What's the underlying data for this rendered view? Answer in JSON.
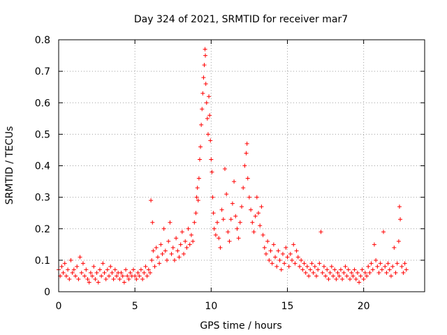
{
  "chart_data": {
    "type": "scatter",
    "title": "Day 324 of 2021, SRMTID for receiver mar7",
    "xlabel": "GPS time / hours",
    "ylabel": "SRMTID / TECUs",
    "xlim": [
      0,
      24
    ],
    "ylim": [
      0,
      0.8
    ],
    "xticks": [
      0,
      5,
      10,
      15,
      20
    ],
    "yticks": [
      0,
      0.1,
      0.2,
      0.3,
      0.4,
      0.5,
      0.6,
      0.7,
      0.8
    ],
    "grid": true,
    "marker": "+",
    "color": "#ff0000",
    "series": [
      {
        "name": "mar7",
        "points": [
          [
            0.0,
            0.07
          ],
          [
            0.1,
            0.05
          ],
          [
            0.2,
            0.08
          ],
          [
            0.3,
            0.06
          ],
          [
            0.4,
            0.09
          ],
          [
            0.5,
            0.05
          ],
          [
            0.6,
            0.07
          ],
          [
            0.7,
            0.04
          ],
          [
            0.8,
            0.1
          ],
          [
            0.9,
            0.06
          ],
          [
            1.0,
            0.07
          ],
          [
            1.1,
            0.05
          ],
          [
            1.2,
            0.08
          ],
          [
            1.3,
            0.04
          ],
          [
            1.4,
            0.11
          ],
          [
            1.5,
            0.06
          ],
          [
            1.6,
            0.09
          ],
          [
            1.7,
            0.05
          ],
          [
            1.8,
            0.07
          ],
          [
            1.9,
            0.04
          ],
          [
            2.0,
            0.03
          ],
          [
            2.1,
            0.06
          ],
          [
            2.2,
            0.05
          ],
          [
            2.3,
            0.08
          ],
          [
            2.4,
            0.04
          ],
          [
            2.5,
            0.06
          ],
          [
            2.6,
            0.03
          ],
          [
            2.7,
            0.07
          ],
          [
            2.8,
            0.05
          ],
          [
            2.9,
            0.09
          ],
          [
            3.0,
            0.06
          ],
          [
            3.1,
            0.04
          ],
          [
            3.2,
            0.07
          ],
          [
            3.3,
            0.05
          ],
          [
            3.4,
            0.08
          ],
          [
            3.5,
            0.06
          ],
          [
            3.6,
            0.04
          ],
          [
            3.7,
            0.07
          ],
          [
            3.8,
            0.05
          ],
          [
            3.9,
            0.06
          ],
          [
            4.0,
            0.04
          ],
          [
            4.1,
            0.06
          ],
          [
            4.2,
            0.05
          ],
          [
            4.3,
            0.03
          ],
          [
            4.4,
            0.07
          ],
          [
            4.5,
            0.05
          ],
          [
            4.6,
            0.04
          ],
          [
            4.7,
            0.06
          ],
          [
            4.8,
            0.05
          ],
          [
            4.9,
            0.07
          ],
          [
            5.0,
            0.05
          ],
          [
            5.1,
            0.04
          ],
          [
            5.2,
            0.06
          ],
          [
            5.3,
            0.05
          ],
          [
            5.4,
            0.07
          ],
          [
            5.5,
            0.04
          ],
          [
            5.6,
            0.06
          ],
          [
            5.7,
            0.08
          ],
          [
            5.8,
            0.05
          ],
          [
            5.9,
            0.07
          ],
          [
            6.0,
            0.06
          ],
          [
            6.05,
            0.29
          ],
          [
            6.1,
            0.1
          ],
          [
            6.15,
            0.22
          ],
          [
            6.2,
            0.13
          ],
          [
            6.3,
            0.08
          ],
          [
            6.4,
            0.14
          ],
          [
            6.5,
            0.11
          ],
          [
            6.6,
            0.09
          ],
          [
            6.7,
            0.15
          ],
          [
            6.8,
            0.12
          ],
          [
            6.9,
            0.2
          ],
          [
            7.0,
            0.13
          ],
          [
            7.1,
            0.1
          ],
          [
            7.2,
            0.16
          ],
          [
            7.3,
            0.22
          ],
          [
            7.4,
            0.12
          ],
          [
            7.5,
            0.14
          ],
          [
            7.6,
            0.1
          ],
          [
            7.7,
            0.17
          ],
          [
            7.8,
            0.13
          ],
          [
            7.9,
            0.11
          ],
          [
            8.0,
            0.15
          ],
          [
            8.1,
            0.19
          ],
          [
            8.2,
            0.12
          ],
          [
            8.3,
            0.16
          ],
          [
            8.4,
            0.14
          ],
          [
            8.5,
            0.2
          ],
          [
            8.6,
            0.15
          ],
          [
            8.7,
            0.18
          ],
          [
            8.8,
            0.16
          ],
          [
            8.9,
            0.22
          ],
          [
            9.0,
            0.25
          ],
          [
            9.05,
            0.3
          ],
          [
            9.1,
            0.33
          ],
          [
            9.15,
            0.29
          ],
          [
            9.2,
            0.36
          ],
          [
            9.25,
            0.42
          ],
          [
            9.3,
            0.46
          ],
          [
            9.35,
            0.53
          ],
          [
            9.4,
            0.58
          ],
          [
            9.45,
            0.63
          ],
          [
            9.5,
            0.68
          ],
          [
            9.55,
            0.72
          ],
          [
            9.6,
            0.77
          ],
          [
            9.62,
            0.75
          ],
          [
            9.65,
            0.66
          ],
          [
            9.7,
            0.6
          ],
          [
            9.75,
            0.55
          ],
          [
            9.8,
            0.5
          ],
          [
            9.85,
            0.62
          ],
          [
            9.9,
            0.56
          ],
          [
            9.95,
            0.48
          ],
          [
            10.0,
            0.42
          ],
          [
            10.05,
            0.38
          ],
          [
            10.1,
            0.3
          ],
          [
            10.15,
            0.25
          ],
          [
            10.2,
            0.2
          ],
          [
            10.3,
            0.18
          ],
          [
            10.4,
            0.22
          ],
          [
            10.5,
            0.17
          ],
          [
            10.6,
            0.14
          ],
          [
            10.7,
            0.26
          ],
          [
            10.8,
            0.23
          ],
          [
            10.9,
            0.39
          ],
          [
            11.0,
            0.31
          ],
          [
            11.1,
            0.19
          ],
          [
            11.2,
            0.16
          ],
          [
            11.3,
            0.23
          ],
          [
            11.4,
            0.28
          ],
          [
            11.5,
            0.35
          ],
          [
            11.6,
            0.24
          ],
          [
            11.7,
            0.2
          ],
          [
            11.8,
            0.17
          ],
          [
            11.9,
            0.22
          ],
          [
            12.0,
            0.27
          ],
          [
            12.1,
            0.33
          ],
          [
            12.2,
            0.4
          ],
          [
            12.3,
            0.44
          ],
          [
            12.35,
            0.47
          ],
          [
            12.4,
            0.36
          ],
          [
            12.5,
            0.3
          ],
          [
            12.6,
            0.26
          ],
          [
            12.7,
            0.22
          ],
          [
            12.8,
            0.19
          ],
          [
            12.9,
            0.24
          ],
          [
            13.0,
            0.3
          ],
          [
            13.1,
            0.25
          ],
          [
            13.2,
            0.21
          ],
          [
            13.3,
            0.27
          ],
          [
            13.4,
            0.18
          ],
          [
            13.5,
            0.14
          ],
          [
            13.6,
            0.12
          ],
          [
            13.7,
            0.16
          ],
          [
            13.8,
            0.1
          ],
          [
            13.9,
            0.13
          ],
          [
            14.0,
            0.09
          ],
          [
            14.1,
            0.15
          ],
          [
            14.2,
            0.11
          ],
          [
            14.3,
            0.08
          ],
          [
            14.4,
            0.13
          ],
          [
            14.5,
            0.1
          ],
          [
            14.6,
            0.07
          ],
          [
            14.7,
            0.12
          ],
          [
            14.8,
            0.09
          ],
          [
            14.9,
            0.14
          ],
          [
            15.0,
            0.11
          ],
          [
            15.1,
            0.08
          ],
          [
            15.2,
            0.12
          ],
          [
            15.3,
            0.1
          ],
          [
            15.4,
            0.15
          ],
          [
            15.5,
            0.09
          ],
          [
            15.6,
            0.13
          ],
          [
            15.7,
            0.11
          ],
          [
            15.8,
            0.08
          ],
          [
            15.9,
            0.1
          ],
          [
            16.0,
            0.07
          ],
          [
            16.1,
            0.09
          ],
          [
            16.2,
            0.06
          ],
          [
            16.3,
            0.08
          ],
          [
            16.4,
            0.05
          ],
          [
            16.5,
            0.07
          ],
          [
            16.6,
            0.09
          ],
          [
            16.7,
            0.06
          ],
          [
            16.8,
            0.08
          ],
          [
            16.9,
            0.05
          ],
          [
            17.0,
            0.07
          ],
          [
            17.1,
            0.09
          ],
          [
            17.2,
            0.19
          ],
          [
            17.3,
            0.06
          ],
          [
            17.4,
            0.08
          ],
          [
            17.5,
            0.05
          ],
          [
            17.6,
            0.07
          ],
          [
            17.7,
            0.04
          ],
          [
            17.8,
            0.06
          ],
          [
            17.9,
            0.08
          ],
          [
            18.0,
            0.05
          ],
          [
            18.1,
            0.07
          ],
          [
            18.2,
            0.04
          ],
          [
            18.3,
            0.06
          ],
          [
            18.4,
            0.05
          ],
          [
            18.5,
            0.07
          ],
          [
            18.6,
            0.04
          ],
          [
            18.7,
            0.06
          ],
          [
            18.8,
            0.08
          ],
          [
            18.9,
            0.05
          ],
          [
            19.0,
            0.07
          ],
          [
            19.1,
            0.04
          ],
          [
            19.2,
            0.06
          ],
          [
            19.3,
            0.05
          ],
          [
            19.4,
            0.07
          ],
          [
            19.5,
            0.04
          ],
          [
            19.6,
            0.06
          ],
          [
            19.7,
            0.03
          ],
          [
            19.8,
            0.05
          ],
          [
            19.9,
            0.07
          ],
          [
            20.0,
            0.04
          ],
          [
            20.1,
            0.06
          ],
          [
            20.2,
            0.05
          ],
          [
            20.3,
            0.08
          ],
          [
            20.4,
            0.06
          ],
          [
            20.5,
            0.09
          ],
          [
            20.6,
            0.07
          ],
          [
            20.7,
            0.15
          ],
          [
            20.8,
            0.1
          ],
          [
            20.9,
            0.08
          ],
          [
            21.0,
            0.06
          ],
          [
            21.1,
            0.09
          ],
          [
            21.2,
            0.07
          ],
          [
            21.3,
            0.19
          ],
          [
            21.4,
            0.08
          ],
          [
            21.5,
            0.06
          ],
          [
            21.6,
            0.09
          ],
          [
            21.7,
            0.07
          ],
          [
            21.8,
            0.05
          ],
          [
            21.9,
            0.08
          ],
          [
            22.0,
            0.14
          ],
          [
            22.1,
            0.06
          ],
          [
            22.2,
            0.09
          ],
          [
            22.3,
            0.16
          ],
          [
            22.35,
            0.27
          ],
          [
            22.4,
            0.23
          ],
          [
            22.5,
            0.08
          ],
          [
            22.6,
            0.06
          ],
          [
            22.7,
            0.09
          ],
          [
            22.8,
            0.07
          ]
        ]
      }
    ]
  }
}
